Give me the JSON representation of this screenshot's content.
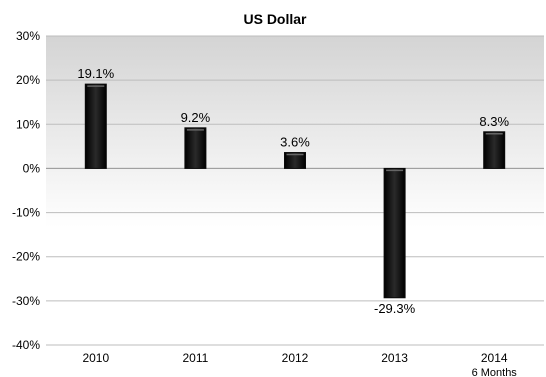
{
  "chart_data": {
    "type": "bar",
    "title": "US Dollar",
    "categories": [
      "2010",
      "2011",
      "2012",
      "2013",
      "2014"
    ],
    "category_sublabels": [
      "",
      "",
      "",
      "",
      "6 Months"
    ],
    "values": [
      19.1,
      9.2,
      3.6,
      -29.3,
      8.3
    ],
    "value_labels": [
      "19.1%",
      "9.2%",
      "3.6%",
      "-29.3%",
      "8.3%"
    ],
    "y_ticks": [
      30,
      20,
      10,
      0,
      -10,
      -20,
      -30,
      -40
    ],
    "y_tick_labels": [
      "30%",
      "20%",
      "10%",
      "0%",
      "-10%",
      "-20%",
      "-30%",
      "-40%"
    ],
    "ylim": [
      -40,
      30
    ],
    "grid": true,
    "xlabel": "",
    "ylabel": "",
    "bar_color": "#0a0a0a",
    "plot_background_top": "#d4d4d4",
    "plot_background_bottom": "#ffffff",
    "gridline_color": "#bdbdbd"
  }
}
